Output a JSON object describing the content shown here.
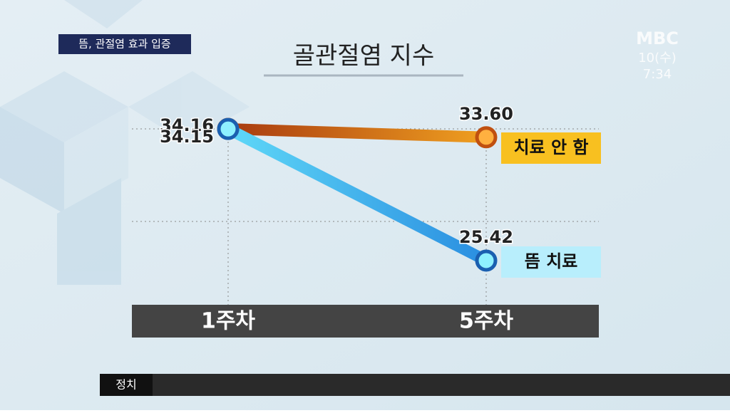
{
  "broadcast": {
    "tag": "뜸, 관절염 효과 입증",
    "channel": "MBC",
    "date": "10(수)",
    "time": "7:34",
    "section": "정치"
  },
  "chart_data": {
    "type": "line",
    "title": "골관절염 지수",
    "categories": [
      "1주차",
      "5주차"
    ],
    "ylim": [
      24,
      36
    ],
    "series": [
      {
        "name": "치료 안 함",
        "color": "#e8741c",
        "values": [
          34.16,
          33.6
        ],
        "value_labels": [
          "34.16",
          "33.60"
        ]
      },
      {
        "name": "뜸 치료",
        "color": "#3cb8ee",
        "values": [
          34.15,
          25.42
        ],
        "value_labels": [
          "34.15",
          "25.42"
        ]
      }
    ]
  }
}
